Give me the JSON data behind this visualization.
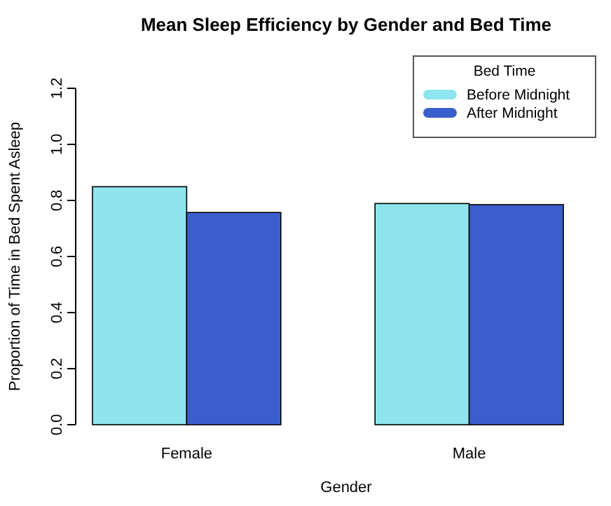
{
  "chart_data": {
    "type": "bar",
    "title": "Mean Sleep Efficiency by Gender and Bed Time",
    "xlabel": "Gender",
    "ylabel": "Proportion of Time in Bed Spent Asleep",
    "legend_title": "Bed Time",
    "categories": [
      "Female",
      "Male"
    ],
    "series": [
      {
        "name": "Before Midnight",
        "color": "#8ee5ee",
        "values": [
          0.849,
          0.789
        ]
      },
      {
        "name": "After Midnight",
        "color": "#3a5fcd",
        "values": [
          0.757,
          0.785
        ]
      }
    ],
    "ylim": [
      0,
      1.2
    ],
    "yticks": [
      {
        "value": 0,
        "label": "0.0"
      },
      0.2,
      0.4,
      0.6,
      0.8,
      {
        "value": 1,
        "label": "1.0"
      },
      1.2
    ],
    "grid": false,
    "legend": "top right"
  }
}
